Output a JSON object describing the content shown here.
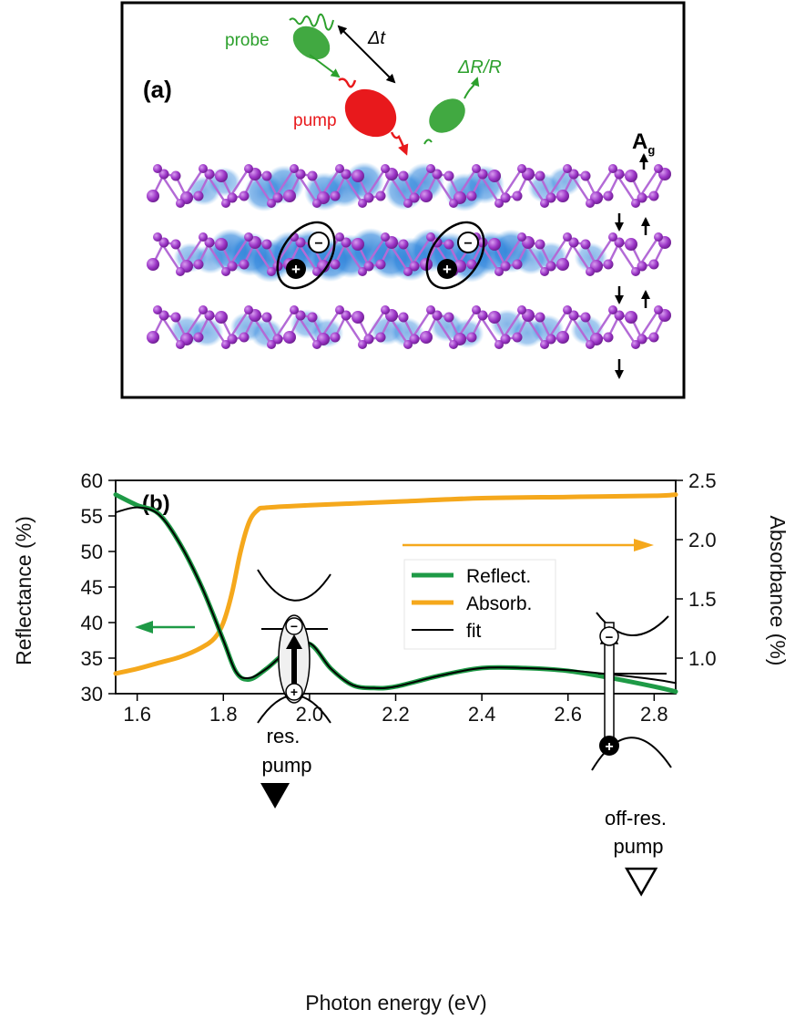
{
  "panel_a": {
    "label": "(a)",
    "probe_label": "probe",
    "delta_t_label": "Δt",
    "pump_label": "pump",
    "signal_label": "ΔR/R",
    "mode_label": "A",
    "mode_subscript": "g",
    "minus_sign": "−",
    "plus_sign": "+",
    "colors": {
      "probe": "#2ca02c",
      "pump": "#e8191c",
      "atom": "#9b35c6",
      "density": "#1f77d4"
    }
  },
  "panel_b": {
    "label": "(b)",
    "res_pump_label_1": "res.",
    "res_pump_label_2": "pump",
    "offres_pump_label_1": "off-res.",
    "offres_pump_label_2": "pump"
  },
  "chart_data": {
    "type": "line",
    "xlabel": "Photon energy (eV)",
    "ylabel": "Reflectance (%)",
    "y2label": "Absorbance (%)",
    "xlim": [
      1.55,
      2.85
    ],
    "ylim": [
      30,
      60
    ],
    "y2lim": [
      0.7,
      2.5
    ],
    "xticks": [
      "1.6",
      "1.8",
      "2.0",
      "2.2",
      "2.4",
      "2.6",
      "2.8"
    ],
    "yticks": [
      "30",
      "35",
      "40",
      "45",
      "50",
      "55",
      "60"
    ],
    "y2ticks": [
      "1.0",
      "1.5",
      "2.0",
      "2.5"
    ],
    "legend_position": "top-center",
    "series": [
      {
        "name": "Reflect.",
        "axis": "left",
        "color": "#1e9a46",
        "x": [
          1.55,
          1.6,
          1.65,
          1.7,
          1.75,
          1.8,
          1.83,
          1.86,
          1.9,
          1.95,
          2.0,
          2.05,
          2.1,
          2.15,
          2.2,
          2.3,
          2.4,
          2.5,
          2.6,
          2.7,
          2.8,
          2.85
        ],
        "y": [
          58,
          56.5,
          55.3,
          51,
          45,
          37.5,
          33,
          32,
          33.5,
          36,
          37,
          33.5,
          31.2,
          30.8,
          31,
          32.5,
          33.6,
          33.6,
          33.2,
          32.2,
          31,
          30.3
        ]
      },
      {
        "name": "Absorb.",
        "axis": "right",
        "color": "#f5a81c",
        "x": [
          1.55,
          1.6,
          1.65,
          1.7,
          1.75,
          1.78,
          1.8,
          1.82,
          1.84,
          1.86,
          1.88,
          1.9,
          2.0,
          2.2,
          2.4,
          2.6,
          2.8,
          2.85
        ],
        "y": [
          0.87,
          0.91,
          0.96,
          1.01,
          1.09,
          1.17,
          1.3,
          1.55,
          1.9,
          2.15,
          2.25,
          2.27,
          2.29,
          2.32,
          2.35,
          2.36,
          2.37,
          2.38
        ]
      },
      {
        "name": "fit",
        "axis": "left",
        "color": "#000000",
        "x": [
          1.55,
          1.6,
          1.65,
          1.7,
          1.75,
          1.8,
          1.83,
          1.86,
          1.9,
          1.95,
          2.0,
          2.05,
          2.1,
          2.15,
          2.2,
          2.3,
          2.4,
          2.5,
          2.6,
          2.7,
          2.8,
          2.85
        ],
        "y": [
          55.5,
          56.2,
          55.2,
          51,
          45,
          37.5,
          33,
          32.2,
          33.5,
          36,
          37.1,
          33.5,
          31.2,
          30.8,
          31,
          32.5,
          33.6,
          33.6,
          33.3,
          32.7,
          32,
          31.5
        ]
      }
    ],
    "annotations": [
      {
        "type": "marker",
        "shape": "filled-triangle-down",
        "x": 1.92,
        "label": "res. pump"
      },
      {
        "type": "marker",
        "shape": "open-triangle-down",
        "x": 2.77,
        "label": "off-res. pump"
      }
    ]
  }
}
